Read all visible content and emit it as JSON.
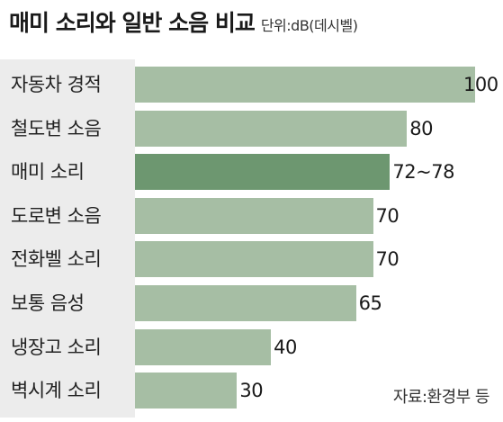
{
  "header": {
    "title": "매미 소리와 일반 소음 비교",
    "unit": "단위:dB(데시벨)"
  },
  "source": "자료:환경부 등",
  "colors": {
    "bar": "#a6bea4",
    "highlight_bar": "#6d9770",
    "label_panel": "#ececec",
    "text": "#222222"
  },
  "chart_data": {
    "type": "bar",
    "orientation": "horizontal",
    "title": "매미 소리와 일반 소음 비교",
    "unit": "단위:dB(데시벨)",
    "categories": [
      "자동차 경적",
      "철도변 소음",
      "매미 소리",
      "도로변 소음",
      "전화벨 소리",
      "보통 음성",
      "냉장고 소리",
      "벽시계 소리"
    ],
    "values": [
      100,
      80,
      75,
      70,
      70,
      65,
      40,
      30
    ],
    "value_labels": [
      "100",
      "80",
      "72~78",
      "70",
      "70",
      "65",
      "40",
      "30"
    ],
    "highlight_index": 2,
    "xlim": [
      0,
      104
    ],
    "grid": false,
    "source": "자료:환경부 등"
  }
}
